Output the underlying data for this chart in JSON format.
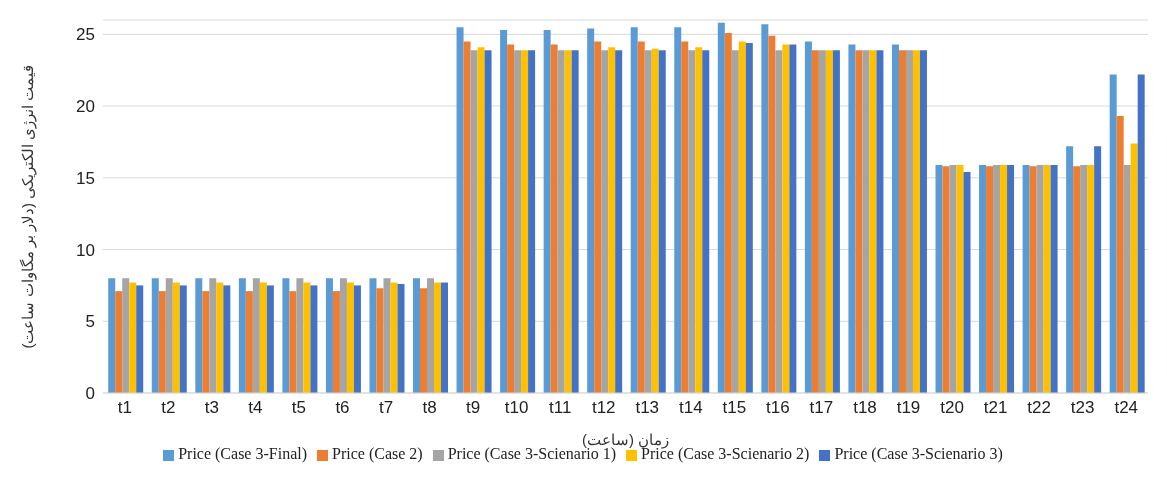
{
  "chart_data": {
    "type": "bar",
    "xlabel": "زمان (ساعت)",
    "ylabel": "قیمت انرژی الکتریکی (دلار بر مگاوات ساعت)",
    "categories": [
      "t1",
      "t2",
      "t3",
      "t4",
      "t5",
      "t6",
      "t7",
      "t8",
      "t9",
      "t10",
      "t11",
      "t12",
      "t13",
      "t14",
      "t15",
      "t16",
      "t17",
      "t18",
      "t19",
      "t20",
      "t21",
      "t22",
      "t23",
      "t24"
    ],
    "series": [
      {
        "name": "Price (Case 3-Final)",
        "color": "#5b9bd5",
        "values": [
          8,
          8,
          8,
          8,
          8,
          8,
          8,
          8,
          25.5,
          25.3,
          25.3,
          25.4,
          25.5,
          25.5,
          25.8,
          25.7,
          24.5,
          24.3,
          24.3,
          15.9,
          15.9,
          15.9,
          17.2,
          22.2
        ]
      },
      {
        "name": "Price (Case 2)",
        "color": "#ed7d31",
        "values": [
          7.1,
          7.1,
          7.1,
          7.1,
          7.1,
          7.1,
          7.3,
          7.3,
          24.5,
          24.3,
          24.3,
          24.5,
          24.5,
          24.5,
          25.1,
          24.9,
          23.9,
          23.9,
          23.9,
          15.8,
          15.8,
          15.8,
          15.8,
          19.3
        ]
      },
      {
        "name": "Price (Case 3-Scienario 1)",
        "color": "#a5a5a5",
        "values": [
          8,
          8,
          8,
          8,
          8,
          8,
          8,
          8,
          23.9,
          23.9,
          23.9,
          23.9,
          23.9,
          23.9,
          23.9,
          23.9,
          23.9,
          23.9,
          23.9,
          15.9,
          15.9,
          15.9,
          15.9,
          15.9
        ]
      },
      {
        "name": "Price (Case 3-Scienario 2)",
        "color": "#ffc000",
        "values": [
          7.7,
          7.7,
          7.7,
          7.7,
          7.7,
          7.7,
          7.7,
          7.7,
          24.1,
          23.9,
          23.9,
          24.1,
          24,
          24.1,
          24.5,
          24.3,
          23.9,
          23.9,
          23.9,
          15.9,
          15.9,
          15.9,
          15.9,
          17.4
        ]
      },
      {
        "name": "Price (Case 3-Scienario 3)",
        "color": "#4472c4",
        "values": [
          7.5,
          7.5,
          7.5,
          7.5,
          7.5,
          7.5,
          7.6,
          7.7,
          23.9,
          23.9,
          23.9,
          23.9,
          23.9,
          23.9,
          24.4,
          24.3,
          23.9,
          23.9,
          23.9,
          15.4,
          15.9,
          15.9,
          17.2,
          22.2
        ]
      }
    ],
    "ylim": [
      0,
      26
    ],
    "yticks": [
      0,
      5,
      10,
      15,
      20,
      25
    ],
    "grid": "y",
    "legend": "bottom"
  }
}
